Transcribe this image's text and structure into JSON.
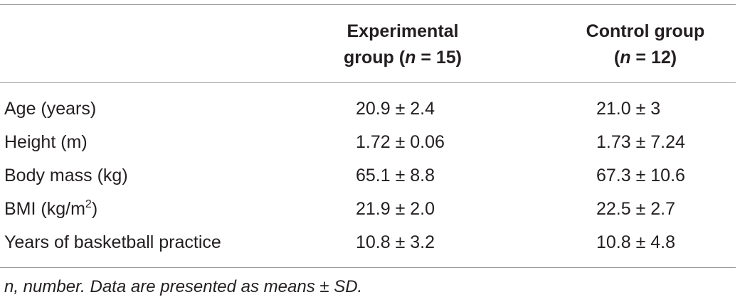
{
  "table": {
    "columns": {
      "experimental": {
        "line1": "Experimental",
        "line2_prefix": "group (",
        "n_symbol": "n",
        "line2_suffix": " = 15)"
      },
      "control": {
        "line1": "Control group",
        "line2_prefix": "(",
        "n_symbol": "n",
        "line2_suffix": " = 12)"
      }
    },
    "rows": [
      {
        "label": "Age (years)",
        "experimental": "20.9 ± 2.4",
        "control": "21.0 ± 3"
      },
      {
        "label": "Height (m)",
        "experimental": "1.72 ± 0.06",
        "control": "1.73 ± 7.24"
      },
      {
        "label": "Body mass (kg)",
        "experimental": "65.1 ± 8.8",
        "control": "67.3 ± 10.6"
      },
      {
        "label_prefix": "BMI (kg/m",
        "label_sup": "2",
        "label_suffix": ")",
        "experimental": "21.9 ± 2.0",
        "control": "22.5 ± 2.7"
      },
      {
        "label": "Years of basketball practice",
        "experimental": "10.8 ± 3.2",
        "control": "10.8 ± 4.8"
      }
    ]
  },
  "footnote": "n, number. Data are presented as means ± SD."
}
